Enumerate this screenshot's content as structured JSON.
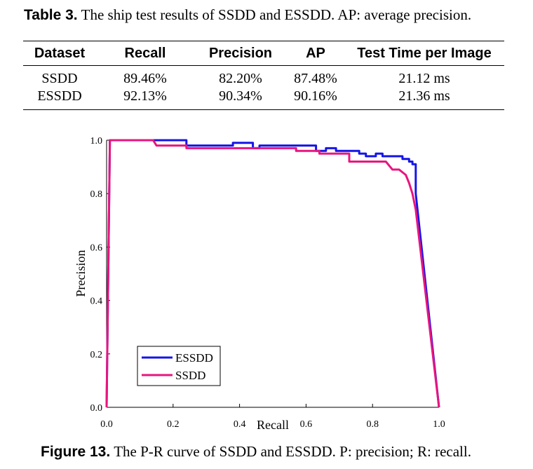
{
  "table": {
    "caption_label": "Table 3.",
    "caption_text": "The ship test results of SSDD and ESSDD. AP: average precision.",
    "headers": [
      "Dataset",
      "Recall",
      "Precision",
      "AP",
      "Test Time per Image"
    ],
    "rows": [
      [
        "SSDD",
        "89.46%",
        "82.20%",
        "87.48%",
        "21.12 ms"
      ],
      [
        "ESSDD",
        "92.13%",
        "90.34%",
        "90.16%",
        "21.36 ms"
      ]
    ]
  },
  "figure": {
    "caption_label": "Figure 13.",
    "caption_text": "The P-R curve of SSDD and ESSDD. P: precision; R: recall."
  },
  "chart_data": {
    "type": "line",
    "xlabel": "Recall",
    "ylabel": "Precision",
    "xlim": [
      0,
      1
    ],
    "ylim": [
      0,
      1
    ],
    "xticks": [
      "0.0",
      "0.2",
      "0.4",
      "0.6",
      "0.8",
      "1.0"
    ],
    "yticks": [
      "0.0",
      "0.2",
      "0.4",
      "0.6",
      "0.8",
      "1.0"
    ],
    "grid": false,
    "legend": "lower-left",
    "series": [
      {
        "name": "ESSDD",
        "color": "#1515e8",
        "x": [
          0.0,
          0.01,
          0.24,
          0.24,
          0.38,
          0.38,
          0.44,
          0.44,
          0.46,
          0.46,
          0.63,
          0.63,
          0.66,
          0.66,
          0.69,
          0.69,
          0.76,
          0.76,
          0.78,
          0.78,
          0.81,
          0.81,
          0.83,
          0.83,
          0.89,
          0.89,
          0.91,
          0.91,
          0.92,
          0.92,
          0.93,
          0.93,
          1.0
        ],
        "y": [
          0.0,
          1.0,
          1.0,
          0.98,
          0.98,
          0.99,
          0.99,
          0.97,
          0.97,
          0.98,
          0.98,
          0.96,
          0.96,
          0.97,
          0.97,
          0.96,
          0.96,
          0.95,
          0.95,
          0.94,
          0.94,
          0.95,
          0.95,
          0.94,
          0.94,
          0.93,
          0.93,
          0.92,
          0.92,
          0.91,
          0.91,
          0.8,
          0.0
        ]
      },
      {
        "name": "SSDD",
        "color": "#e8157f",
        "x": [
          0.0,
          0.01,
          0.14,
          0.15,
          0.24,
          0.24,
          0.57,
          0.57,
          0.64,
          0.64,
          0.73,
          0.73,
          0.84,
          0.86,
          0.88,
          0.9,
          0.91,
          0.92,
          0.93,
          1.0
        ],
        "y": [
          0.0,
          1.0,
          1.0,
          0.98,
          0.98,
          0.97,
          0.97,
          0.96,
          0.96,
          0.95,
          0.95,
          0.92,
          0.92,
          0.89,
          0.89,
          0.87,
          0.84,
          0.8,
          0.74,
          0.0
        ]
      }
    ]
  }
}
